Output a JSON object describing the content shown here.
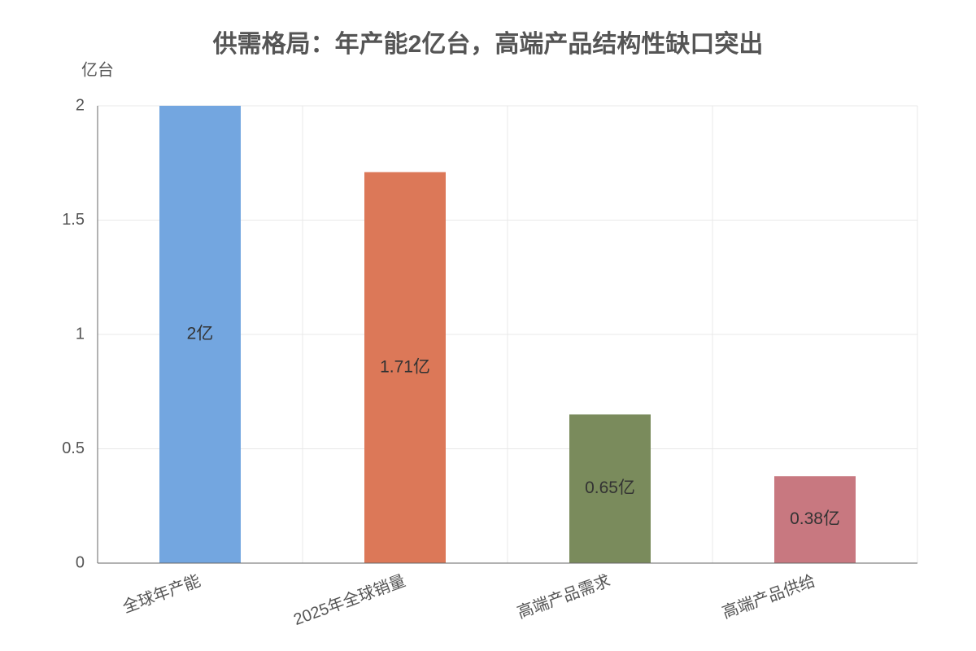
{
  "chart_data": {
    "type": "bar",
    "title": "供需格局：年产能2亿台，高端产品结构性缺口突出",
    "y_label": "亿台",
    "categories": [
      "全球年产能",
      "2025年全球销量",
      "高端产品需求",
      "高端产品供给"
    ],
    "values": [
      2,
      1.71,
      0.65,
      0.38
    ],
    "value_labels": [
      "2亿",
      "1.71亿",
      "0.65亿",
      "0.38亿"
    ],
    "colors": [
      "#73a6e0",
      "#dc7858",
      "#7a8b5c",
      "#c87880"
    ],
    "ylim": [
      0,
      2
    ],
    "yticks": [
      0,
      0.5,
      1,
      1.5,
      2
    ],
    "grid": true
  }
}
